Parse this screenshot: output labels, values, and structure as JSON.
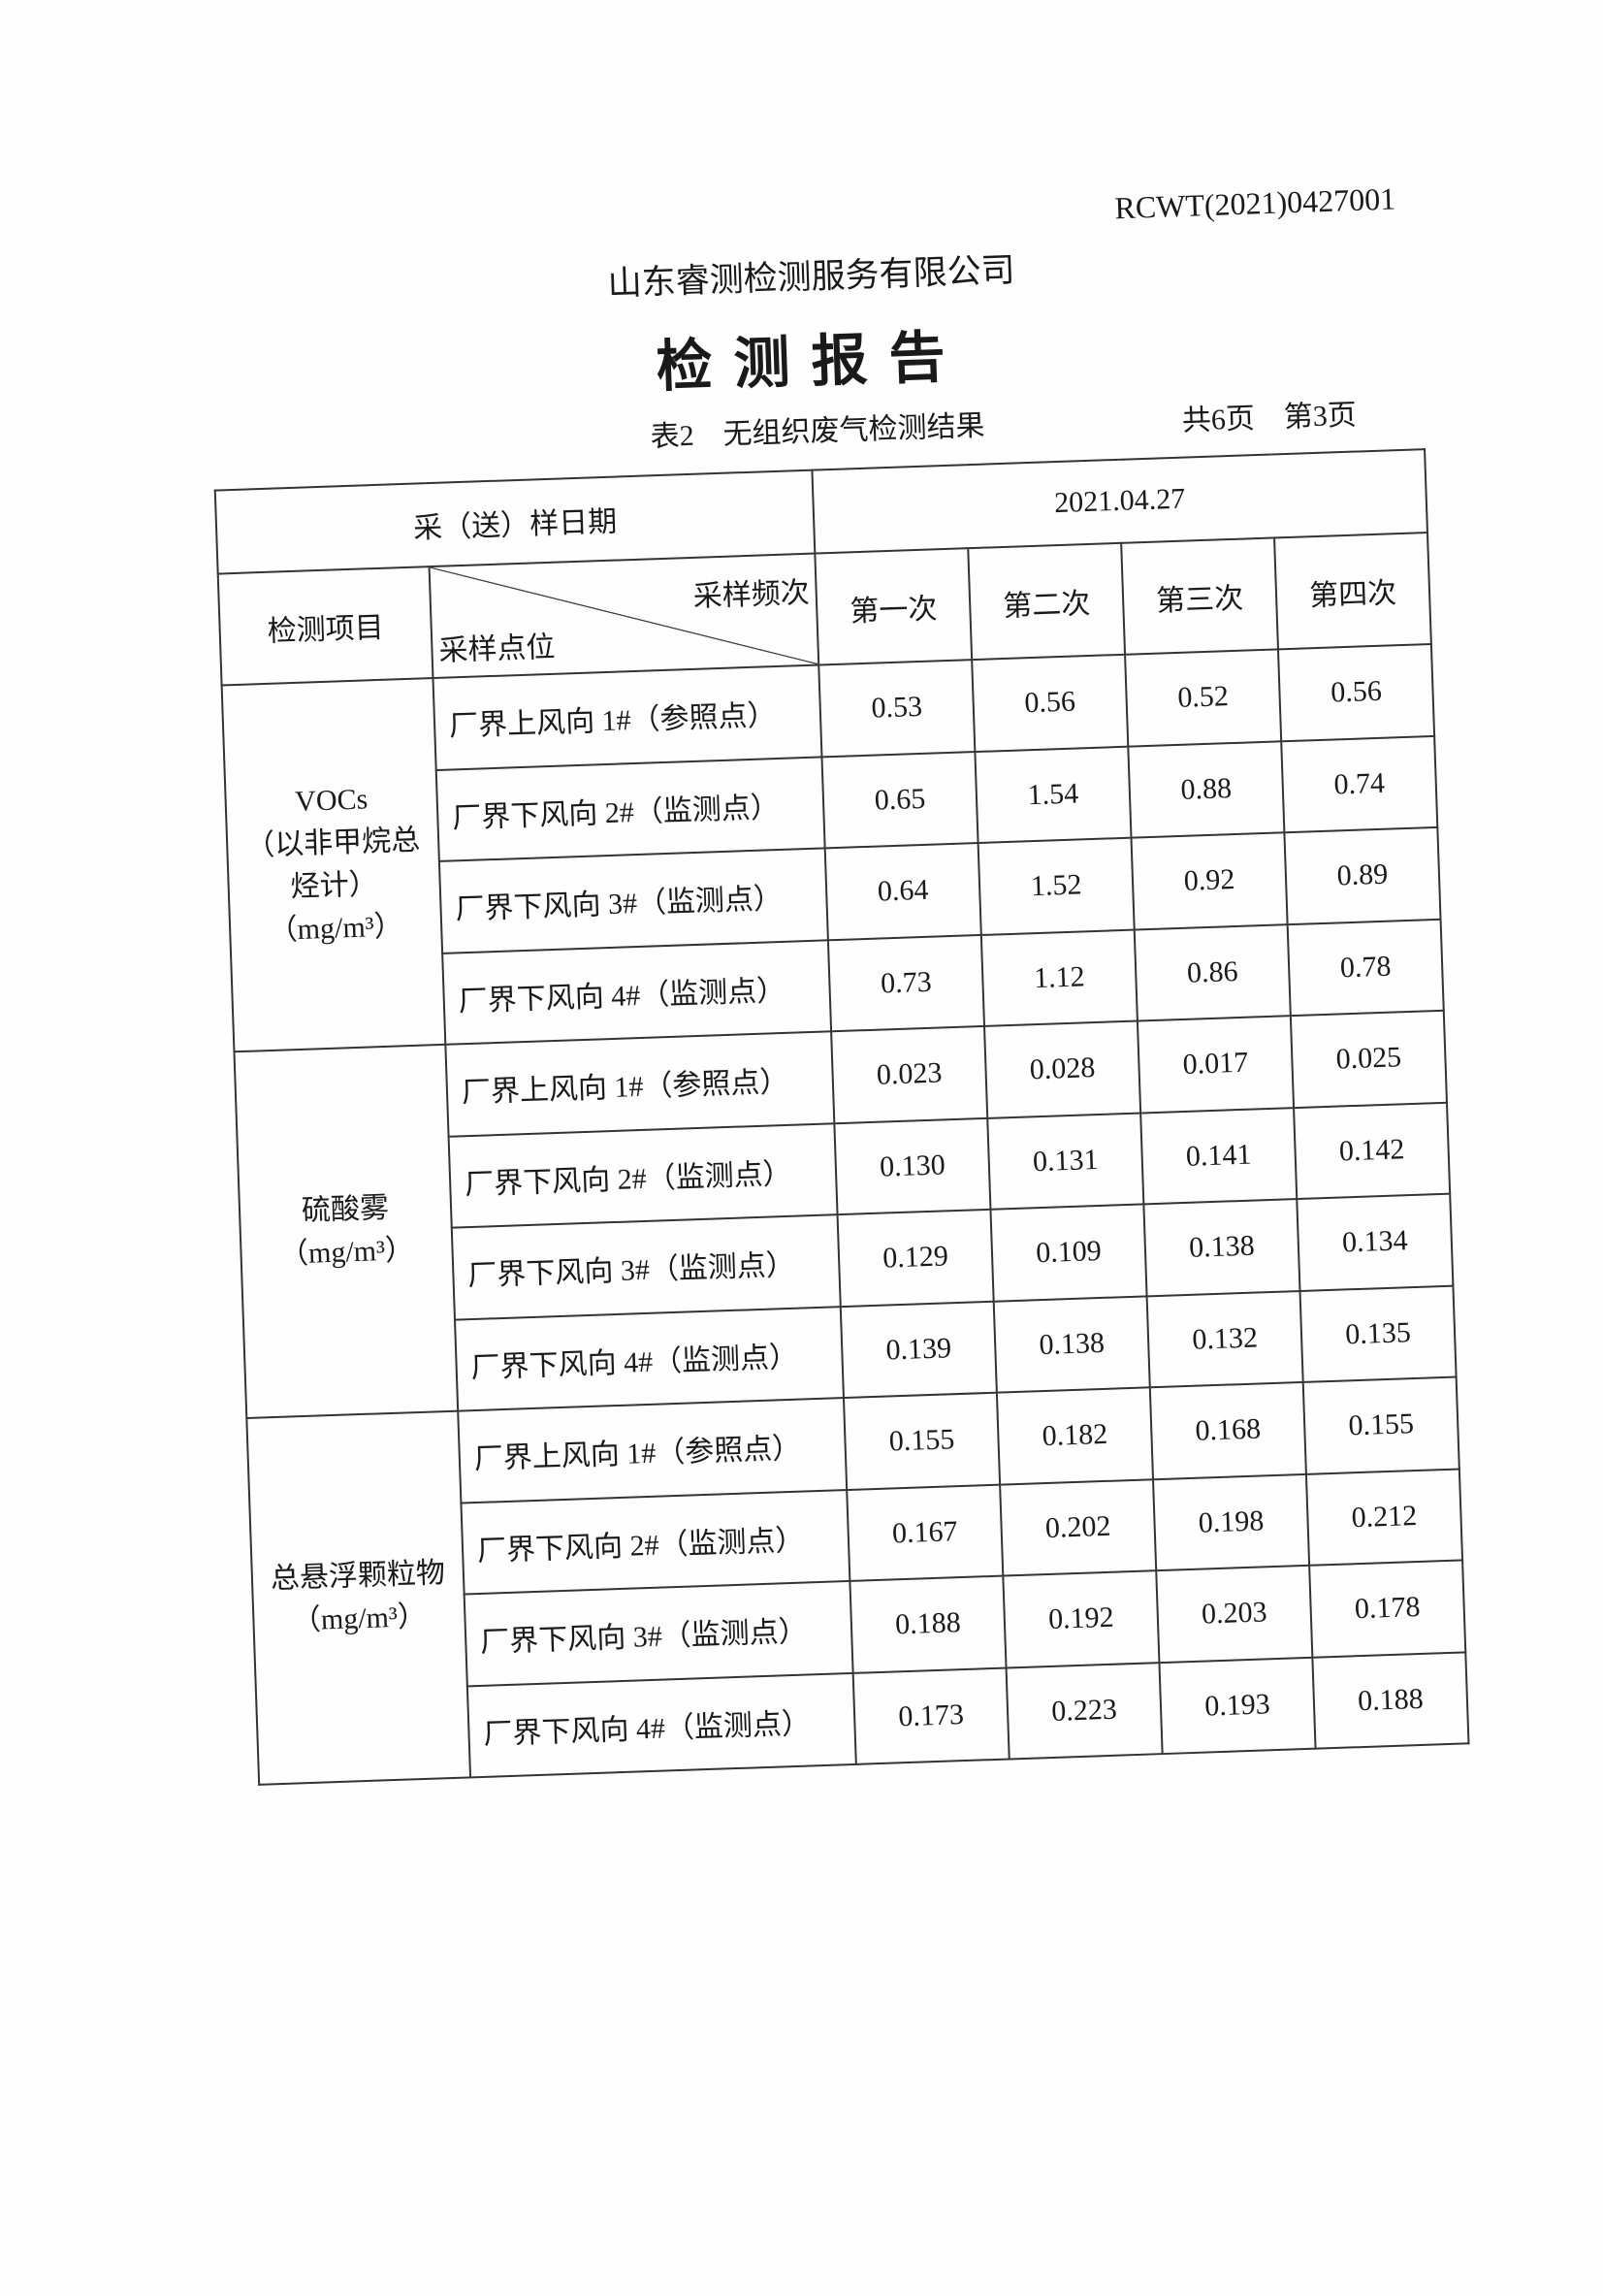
{
  "header": {
    "report_no": "RCWT(2021)0427001",
    "company": "山东睿测检测服务有限公司",
    "title": "检测报告",
    "table_caption": "表2　无组织废气检测结果",
    "page_count": "共6页　第3页"
  },
  "table": {
    "date_label": "采（送）样日期",
    "date_value": "2021.04.27",
    "item_header": "检测项目",
    "freq_header": "采样频次",
    "point_header": "采样点位",
    "rounds": [
      "第一次",
      "第二次",
      "第三次",
      "第四次"
    ],
    "groups": [
      {
        "item": [
          "VOCs",
          "（以非甲烷总",
          "烃计）",
          "（mg/m³）"
        ],
        "rows": [
          {
            "point": "厂界上风向 1#（参照点）",
            "values": [
              "0.53",
              "0.56",
              "0.52",
              "0.56"
            ]
          },
          {
            "point": "厂界下风向 2#（监测点）",
            "values": [
              "0.65",
              "1.54",
              "0.88",
              "0.74"
            ]
          },
          {
            "point": "厂界下风向 3#（监测点）",
            "values": [
              "0.64",
              "1.52",
              "0.92",
              "0.89"
            ]
          },
          {
            "point": "厂界下风向 4#（监测点）",
            "values": [
              "0.73",
              "1.12",
              "0.86",
              "0.78"
            ]
          }
        ]
      },
      {
        "item": [
          "硫酸雾",
          "（mg/m³）"
        ],
        "rows": [
          {
            "point": "厂界上风向 1#（参照点）",
            "values": [
              "0.023",
              "0.028",
              "0.017",
              "0.025"
            ]
          },
          {
            "point": "厂界下风向 2#（监测点）",
            "values": [
              "0.130",
              "0.131",
              "0.141",
              "0.142"
            ]
          },
          {
            "point": "厂界下风向 3#（监测点）",
            "values": [
              "0.129",
              "0.109",
              "0.138",
              "0.134"
            ]
          },
          {
            "point": "厂界下风向 4#（监测点）",
            "values": [
              "0.139",
              "0.138",
              "0.132",
              "0.135"
            ]
          }
        ]
      },
      {
        "item": [
          "总悬浮颗粒物",
          "（mg/m³）"
        ],
        "rows": [
          {
            "point": "厂界上风向 1#（参照点）",
            "values": [
              "0.155",
              "0.182",
              "0.168",
              "0.155"
            ]
          },
          {
            "point": "厂界下风向 2#（监测点）",
            "values": [
              "0.167",
              "0.202",
              "0.198",
              "0.212"
            ]
          },
          {
            "point": "厂界下风向 3#（监测点）",
            "values": [
              "0.188",
              "0.192",
              "0.203",
              "0.178"
            ]
          },
          {
            "point": "厂界下风向 4#（监测点）",
            "values": [
              "0.173",
              "0.223",
              "0.193",
              "0.188"
            ]
          }
        ]
      }
    ]
  }
}
